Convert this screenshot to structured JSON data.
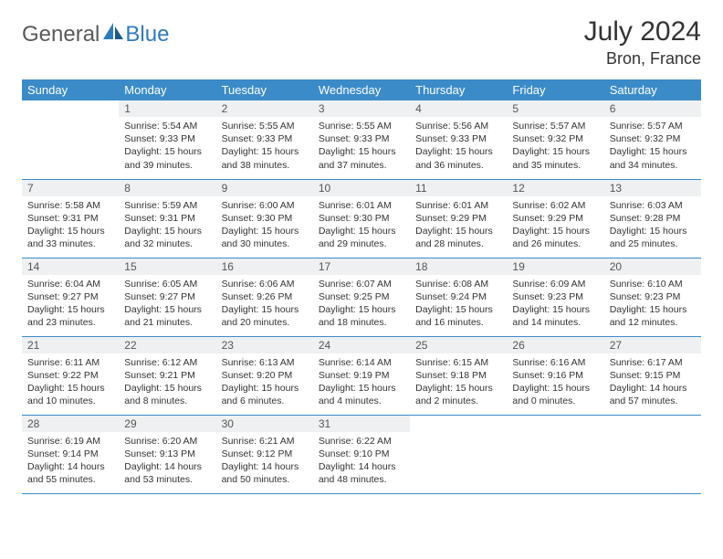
{
  "brand": {
    "part1": "General",
    "part2": "Blue"
  },
  "title": "July 2024",
  "location": "Bron, France",
  "colors": {
    "header_bg": "#3b8bc9",
    "header_text": "#ffffff",
    "daynum_bg": "#eef0f1",
    "row_border": "#3b8bc9",
    "brand_gray": "#5a5a5a",
    "brand_blue": "#2f7bbf"
  },
  "weekdays": [
    "Sunday",
    "Monday",
    "Tuesday",
    "Wednesday",
    "Thursday",
    "Friday",
    "Saturday"
  ],
  "weeks": [
    [
      null,
      {
        "n": "1",
        "sr": "Sunrise: 5:54 AM",
        "ss": "Sunset: 9:33 PM",
        "dl": "Daylight: 15 hours and 39 minutes."
      },
      {
        "n": "2",
        "sr": "Sunrise: 5:55 AM",
        "ss": "Sunset: 9:33 PM",
        "dl": "Daylight: 15 hours and 38 minutes."
      },
      {
        "n": "3",
        "sr": "Sunrise: 5:55 AM",
        "ss": "Sunset: 9:33 PM",
        "dl": "Daylight: 15 hours and 37 minutes."
      },
      {
        "n": "4",
        "sr": "Sunrise: 5:56 AM",
        "ss": "Sunset: 9:33 PM",
        "dl": "Daylight: 15 hours and 36 minutes."
      },
      {
        "n": "5",
        "sr": "Sunrise: 5:57 AM",
        "ss": "Sunset: 9:32 PM",
        "dl": "Daylight: 15 hours and 35 minutes."
      },
      {
        "n": "6",
        "sr": "Sunrise: 5:57 AM",
        "ss": "Sunset: 9:32 PM",
        "dl": "Daylight: 15 hours and 34 minutes."
      }
    ],
    [
      {
        "n": "7",
        "sr": "Sunrise: 5:58 AM",
        "ss": "Sunset: 9:31 PM",
        "dl": "Daylight: 15 hours and 33 minutes."
      },
      {
        "n": "8",
        "sr": "Sunrise: 5:59 AM",
        "ss": "Sunset: 9:31 PM",
        "dl": "Daylight: 15 hours and 32 minutes."
      },
      {
        "n": "9",
        "sr": "Sunrise: 6:00 AM",
        "ss": "Sunset: 9:30 PM",
        "dl": "Daylight: 15 hours and 30 minutes."
      },
      {
        "n": "10",
        "sr": "Sunrise: 6:01 AM",
        "ss": "Sunset: 9:30 PM",
        "dl": "Daylight: 15 hours and 29 minutes."
      },
      {
        "n": "11",
        "sr": "Sunrise: 6:01 AM",
        "ss": "Sunset: 9:29 PM",
        "dl": "Daylight: 15 hours and 28 minutes."
      },
      {
        "n": "12",
        "sr": "Sunrise: 6:02 AM",
        "ss": "Sunset: 9:29 PM",
        "dl": "Daylight: 15 hours and 26 minutes."
      },
      {
        "n": "13",
        "sr": "Sunrise: 6:03 AM",
        "ss": "Sunset: 9:28 PM",
        "dl": "Daylight: 15 hours and 25 minutes."
      }
    ],
    [
      {
        "n": "14",
        "sr": "Sunrise: 6:04 AM",
        "ss": "Sunset: 9:27 PM",
        "dl": "Daylight: 15 hours and 23 minutes."
      },
      {
        "n": "15",
        "sr": "Sunrise: 6:05 AM",
        "ss": "Sunset: 9:27 PM",
        "dl": "Daylight: 15 hours and 21 minutes."
      },
      {
        "n": "16",
        "sr": "Sunrise: 6:06 AM",
        "ss": "Sunset: 9:26 PM",
        "dl": "Daylight: 15 hours and 20 minutes."
      },
      {
        "n": "17",
        "sr": "Sunrise: 6:07 AM",
        "ss": "Sunset: 9:25 PM",
        "dl": "Daylight: 15 hours and 18 minutes."
      },
      {
        "n": "18",
        "sr": "Sunrise: 6:08 AM",
        "ss": "Sunset: 9:24 PM",
        "dl": "Daylight: 15 hours and 16 minutes."
      },
      {
        "n": "19",
        "sr": "Sunrise: 6:09 AM",
        "ss": "Sunset: 9:23 PM",
        "dl": "Daylight: 15 hours and 14 minutes."
      },
      {
        "n": "20",
        "sr": "Sunrise: 6:10 AM",
        "ss": "Sunset: 9:23 PM",
        "dl": "Daylight: 15 hours and 12 minutes."
      }
    ],
    [
      {
        "n": "21",
        "sr": "Sunrise: 6:11 AM",
        "ss": "Sunset: 9:22 PM",
        "dl": "Daylight: 15 hours and 10 minutes."
      },
      {
        "n": "22",
        "sr": "Sunrise: 6:12 AM",
        "ss": "Sunset: 9:21 PM",
        "dl": "Daylight: 15 hours and 8 minutes."
      },
      {
        "n": "23",
        "sr": "Sunrise: 6:13 AM",
        "ss": "Sunset: 9:20 PM",
        "dl": "Daylight: 15 hours and 6 minutes."
      },
      {
        "n": "24",
        "sr": "Sunrise: 6:14 AM",
        "ss": "Sunset: 9:19 PM",
        "dl": "Daylight: 15 hours and 4 minutes."
      },
      {
        "n": "25",
        "sr": "Sunrise: 6:15 AM",
        "ss": "Sunset: 9:18 PM",
        "dl": "Daylight: 15 hours and 2 minutes."
      },
      {
        "n": "26",
        "sr": "Sunrise: 6:16 AM",
        "ss": "Sunset: 9:16 PM",
        "dl": "Daylight: 15 hours and 0 minutes."
      },
      {
        "n": "27",
        "sr": "Sunrise: 6:17 AM",
        "ss": "Sunset: 9:15 PM",
        "dl": "Daylight: 14 hours and 57 minutes."
      }
    ],
    [
      {
        "n": "28",
        "sr": "Sunrise: 6:19 AM",
        "ss": "Sunset: 9:14 PM",
        "dl": "Daylight: 14 hours and 55 minutes."
      },
      {
        "n": "29",
        "sr": "Sunrise: 6:20 AM",
        "ss": "Sunset: 9:13 PM",
        "dl": "Daylight: 14 hours and 53 minutes."
      },
      {
        "n": "30",
        "sr": "Sunrise: 6:21 AM",
        "ss": "Sunset: 9:12 PM",
        "dl": "Daylight: 14 hours and 50 minutes."
      },
      {
        "n": "31",
        "sr": "Sunrise: 6:22 AM",
        "ss": "Sunset: 9:10 PM",
        "dl": "Daylight: 14 hours and 48 minutes."
      },
      null,
      null,
      null
    ]
  ]
}
